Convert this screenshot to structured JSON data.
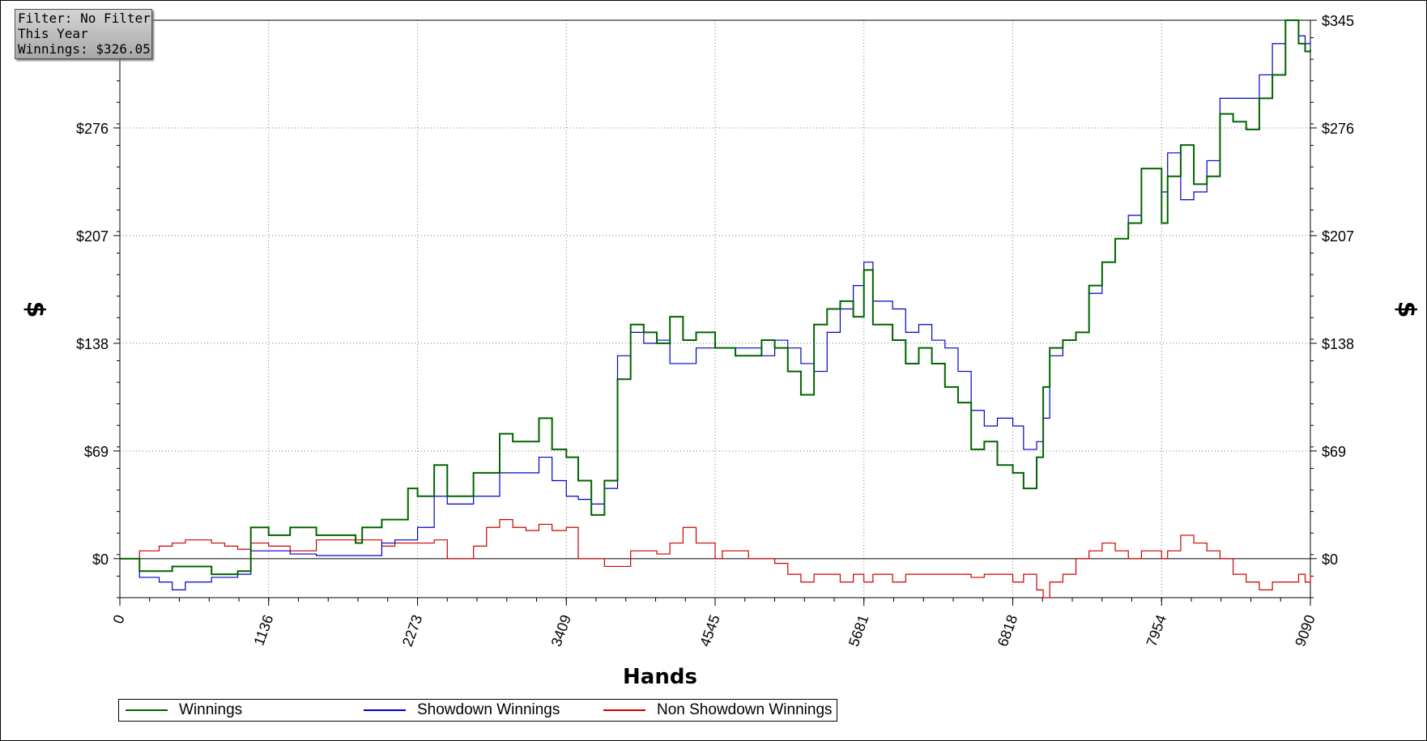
{
  "info_box": {
    "filter": "Filter: No Filter",
    "period": "This Year",
    "winnings": "Winnings: $326.05"
  },
  "chart_data": {
    "type": "line",
    "xlabel": "Hands",
    "ylabel": "$",
    "xlim": [
      0,
      9090
    ],
    "ylim": [
      -25,
      345
    ],
    "x_ticks": [
      0,
      1136,
      2273,
      3409,
      4545,
      5681,
      6818,
      7954,
      9090
    ],
    "x_tick_labels": [
      "0",
      "1136",
      "2273",
      "3409",
      "4545",
      "5681",
      "6818",
      "7954",
      "9090"
    ],
    "y_ticks": [
      0,
      69,
      138,
      207,
      276,
      345
    ],
    "y_tick_labels": [
      "$0",
      "$69",
      "$138",
      "$207",
      "$276",
      "$345"
    ],
    "grid": true,
    "legend_position": "bottom",
    "series": [
      {
        "name": "Winnings",
        "color": "#006400",
        "x": [
          0,
          150,
          400,
          700,
          900,
          1000,
          1136,
          1300,
          1500,
          1800,
          1850,
          2000,
          2200,
          2273,
          2400,
          2500,
          2700,
          2900,
          3000,
          3200,
          3300,
          3409,
          3500,
          3600,
          3700,
          3800,
          3900,
          4000,
          4100,
          4200,
          4300,
          4400,
          4545,
          4700,
          4900,
          5000,
          5100,
          5200,
          5300,
          5400,
          5500,
          5600,
          5681,
          5750,
          5900,
          6000,
          6100,
          6200,
          6300,
          6400,
          6500,
          6600,
          6700,
          6818,
          6900,
          7000,
          7050,
          7100,
          7200,
          7300,
          7400,
          7500,
          7600,
          7700,
          7800,
          7954,
          8000,
          8100,
          8200,
          8300,
          8400,
          8500,
          8600,
          8700,
          8800,
          8900,
          9000,
          9050,
          9090
        ],
        "values": [
          0,
          -8,
          -5,
          -10,
          -8,
          20,
          15,
          20,
          15,
          10,
          20,
          25,
          45,
          40,
          60,
          40,
          55,
          80,
          75,
          90,
          70,
          65,
          50,
          28,
          50,
          115,
          150,
          145,
          138,
          155,
          140,
          145,
          135,
          130,
          140,
          135,
          120,
          105,
          150,
          160,
          165,
          155,
          185,
          150,
          140,
          125,
          135,
          125,
          110,
          100,
          70,
          75,
          60,
          55,
          45,
          65,
          110,
          135,
          140,
          145,
          175,
          190,
          205,
          215,
          250,
          215,
          245,
          265,
          240,
          245,
          285,
          280,
          275,
          295,
          310,
          345,
          330,
          325,
          326
        ]
      },
      {
        "name": "Showdown Winnings",
        "color": "#0000cd",
        "x": [
          0,
          150,
          300,
          400,
          500,
          700,
          900,
          1000,
          1136,
          1300,
          1500,
          1800,
          2000,
          2100,
          2273,
          2400,
          2500,
          2700,
          2900,
          3000,
          3200,
          3300,
          3409,
          3500,
          3600,
          3700,
          3800,
          3900,
          4000,
          4100,
          4200,
          4300,
          4400,
          4545,
          4700,
          4900,
          5000,
          5100,
          5200,
          5300,
          5400,
          5500,
          5600,
          5681,
          5750,
          5900,
          6000,
          6100,
          6200,
          6300,
          6400,
          6500,
          6600,
          6700,
          6818,
          6900,
          7000,
          7050,
          7100,
          7200,
          7300,
          7400,
          7500,
          7600,
          7700,
          7800,
          7954,
          8000,
          8100,
          8200,
          8300,
          8400,
          8500,
          8600,
          8700,
          8800,
          8900,
          9000,
          9050,
          9090
        ],
        "values": [
          0,
          -12,
          -15,
          -20,
          -15,
          -12,
          -10,
          5,
          5,
          3,
          2,
          2,
          10,
          12,
          20,
          40,
          35,
          40,
          55,
          55,
          65,
          50,
          40,
          38,
          35,
          45,
          130,
          145,
          138,
          140,
          125,
          125,
          135,
          135,
          135,
          130,
          140,
          135,
          125,
          120,
          145,
          160,
          175,
          190,
          165,
          160,
          145,
          150,
          140,
          135,
          120,
          95,
          85,
          90,
          85,
          70,
          75,
          90,
          130,
          140,
          145,
          170,
          190,
          205,
          220,
          250,
          235,
          260,
          230,
          235,
          255,
          295,
          295,
          295,
          310,
          330,
          345,
          335,
          330,
          332
        ]
      },
      {
        "name": "Non Showdown Winnings",
        "color": "#cc0000",
        "x": [
          0,
          150,
          300,
          400,
          500,
          700,
          800,
          900,
          1000,
          1136,
          1300,
          1500,
          1800,
          2000,
          2100,
          2273,
          2400,
          2500,
          2700,
          2800,
          2900,
          3000,
          3100,
          3200,
          3300,
          3409,
          3500,
          3600,
          3700,
          3800,
          3900,
          4000,
          4100,
          4200,
          4300,
          4400,
          4545,
          4600,
          4700,
          4800,
          4900,
          5000,
          5100,
          5200,
          5300,
          5400,
          5500,
          5600,
          5681,
          5750,
          5900,
          6000,
          6100,
          6200,
          6300,
          6400,
          6500,
          6600,
          6700,
          6818,
          6900,
          7000,
          7050,
          7100,
          7200,
          7300,
          7400,
          7500,
          7600,
          7700,
          7800,
          7954,
          8000,
          8100,
          8200,
          8300,
          8400,
          8500,
          8600,
          8700,
          8800,
          8900,
          9000,
          9050,
          9090
        ],
        "values": [
          0,
          5,
          8,
          10,
          12,
          10,
          8,
          6,
          10,
          8,
          5,
          12,
          12,
          8,
          10,
          10,
          12,
          0,
          8,
          20,
          25,
          20,
          18,
          22,
          18,
          20,
          0,
          0,
          -5,
          -5,
          5,
          5,
          3,
          10,
          20,
          10,
          0,
          5,
          5,
          0,
          0,
          -3,
          -10,
          -15,
          -10,
          -10,
          -15,
          -10,
          -15,
          -10,
          -15,
          -10,
          -10,
          -10,
          -10,
          -10,
          -12,
          -10,
          -10,
          -15,
          -10,
          -20,
          -25,
          -15,
          -10,
          0,
          5,
          10,
          5,
          0,
          5,
          0,
          5,
          15,
          10,
          5,
          0,
          -10,
          -15,
          -20,
          -15,
          -15,
          -10,
          -15,
          -10
        ]
      }
    ]
  }
}
